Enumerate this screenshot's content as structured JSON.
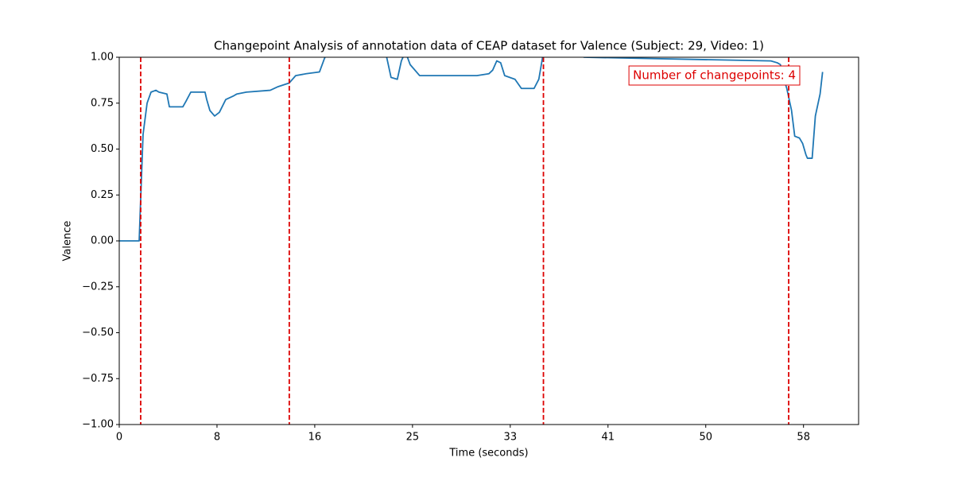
{
  "chart_data": {
    "type": "line",
    "title": "Changepoint Analysis of annotation data of CEAP dataset for Valence (Subject: 29, Video: 1)",
    "xlabel": "Time (seconds)",
    "ylabel": "Valence",
    "annotation": "Number of changepoints: 4",
    "annotation_color": "#dd0000",
    "changepoint_color": "#dd0000",
    "changepoints": [
      1.81,
      14.35,
      35.8,
      56.5
    ],
    "xlim": [
      0,
      62.4
    ],
    "ylim": [
      -1,
      1
    ],
    "xticks": [
      {
        "value": 0,
        "label": "0"
      },
      {
        "value": 8.25,
        "label": "8"
      },
      {
        "value": 16.5,
        "label": "16"
      },
      {
        "value": 24.75,
        "label": "25"
      },
      {
        "value": 33,
        "label": "33"
      },
      {
        "value": 41.25,
        "label": "41"
      },
      {
        "value": 49.5,
        "label": "50"
      },
      {
        "value": 57.75,
        "label": "58"
      }
    ],
    "yticks": [
      {
        "value": -1,
        "label": "−1.00"
      },
      {
        "value": -0.75,
        "label": "−0.75"
      },
      {
        "value": -0.5,
        "label": "−0.50"
      },
      {
        "value": -0.25,
        "label": "−0.25"
      },
      {
        "value": 0,
        "label": "0.00"
      },
      {
        "value": 0.25,
        "label": "0.25"
      },
      {
        "value": 0.5,
        "label": "0.50"
      },
      {
        "value": 0.75,
        "label": "0.75"
      },
      {
        "value": 1,
        "label": "1.00"
      }
    ],
    "series": [
      {
        "name": "Valence",
        "color": "#1f77b4",
        "x": [
          0,
          1.68,
          1.81,
          2.01,
          2.35,
          2.68,
          3.09,
          3.35,
          4.02,
          4.23,
          5.37,
          5.63,
          6.04,
          7.24,
          7.38,
          7.65,
          8.05,
          8.45,
          8.99,
          9.66,
          9.93,
          10.73,
          12.74,
          13.41,
          14.35,
          14.89,
          15.76,
          16.9,
          17.3,
          17.57,
          22.47,
          22.94,
          23.47,
          23.81,
          24.15,
          24.55,
          25.35,
          30.18,
          31.19,
          31.52,
          31.86,
          32.19,
          32.53,
          33.4,
          33.94,
          35.01,
          35.41,
          35.81,
          38.1,
          39.24,
          55.0,
          55.53,
          55.8,
          56.0,
          56.34,
          56.74,
          57.01,
          57.41,
          57.68,
          57.95,
          58.08,
          58.35,
          58.48,
          58.75,
          59.15,
          59.36
        ],
        "values": [
          0,
          0,
          0.23,
          0.58,
          0.75,
          0.81,
          0.82,
          0.81,
          0.8,
          0.73,
          0.73,
          0.76,
          0.81,
          0.81,
          0.77,
          0.71,
          0.68,
          0.7,
          0.77,
          0.79,
          0.8,
          0.81,
          0.82,
          0.84,
          0.86,
          0.9,
          0.91,
          0.92,
          0.99,
          1.03,
          1.03,
          0.89,
          0.88,
          0.98,
          1.03,
          0.96,
          0.9,
          0.9,
          0.91,
          0.93,
          0.98,
          0.97,
          0.9,
          0.88,
          0.83,
          0.83,
          0.88,
          1.03,
          1.03,
          1.0,
          0.98,
          0.97,
          0.96,
          0.9,
          0.83,
          0.71,
          0.57,
          0.56,
          0.53,
          0.47,
          0.45,
          0.45,
          0.45,
          0.68,
          0.8,
          0.92
        ]
      }
    ]
  }
}
